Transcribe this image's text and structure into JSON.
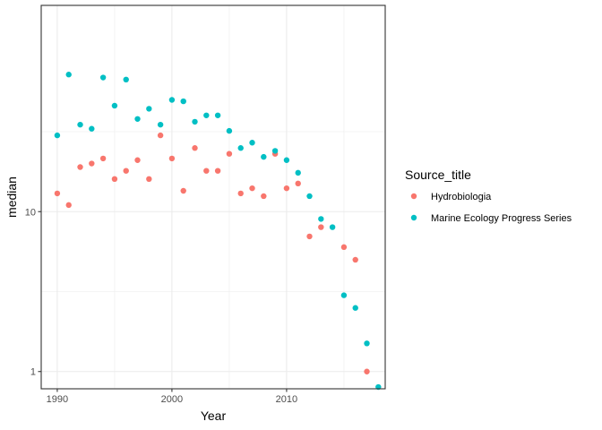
{
  "chart_data": {
    "type": "scatter",
    "xlabel": "Year",
    "ylabel": "median",
    "y_scale": "log10",
    "xlim": [
      1988.6,
      2018.6
    ],
    "ylim": [
      0.78,
      195
    ],
    "x_ticks": [
      1990,
      2000,
      2010
    ],
    "x_tick_labels": [
      "1990",
      "2000",
      "2010"
    ],
    "y_ticks": [
      1,
      10
    ],
    "y_tick_labels": [
      "1",
      "10"
    ],
    "grid": true,
    "legend": {
      "title": "Source_title",
      "position": "right"
    },
    "series": [
      {
        "name": "Hydrobiologia",
        "color": "#F8766D",
        "points": [
          [
            1990,
            13
          ],
          [
            1991,
            11
          ],
          [
            1992,
            19
          ],
          [
            1993,
            20
          ],
          [
            1994,
            21.5
          ],
          [
            1995,
            16
          ],
          [
            1996,
            18
          ],
          [
            1997,
            21
          ],
          [
            1998,
            16
          ],
          [
            1999,
            30
          ],
          [
            2000,
            21.5
          ],
          [
            2001,
            13.5
          ],
          [
            2002,
            25
          ],
          [
            2003,
            18
          ],
          [
            2004,
            18
          ],
          [
            2005,
            23
          ],
          [
            2006,
            13
          ],
          [
            2007,
            14
          ],
          [
            2008,
            12.5
          ],
          [
            2009,
            23
          ],
          [
            2010,
            14
          ],
          [
            2011,
            15
          ],
          [
            2012,
            7
          ],
          [
            2013,
            8
          ],
          [
            2015,
            6
          ],
          [
            2016,
            5
          ],
          [
            2017,
            1
          ]
        ]
      },
      {
        "name": "Marine Ecology Progress Series",
        "color": "#00BFC4",
        "points": [
          [
            1990,
            30
          ],
          [
            1991,
            72
          ],
          [
            1992,
            35
          ],
          [
            1993,
            33
          ],
          [
            1994,
            69
          ],
          [
            1995,
            46
          ],
          [
            1996,
            67
          ],
          [
            1997,
            38
          ],
          [
            1998,
            44
          ],
          [
            1999,
            35
          ],
          [
            2000,
            50
          ],
          [
            2001,
            49
          ],
          [
            2002,
            36.5
          ],
          [
            2003,
            40
          ],
          [
            2004,
            40
          ],
          [
            2005,
            32
          ],
          [
            2006,
            25
          ],
          [
            2007,
            27
          ],
          [
            2008,
            22
          ],
          [
            2009,
            24
          ],
          [
            2010,
            21
          ],
          [
            2011,
            17.5
          ],
          [
            2012,
            12.5
          ],
          [
            2013,
            9
          ],
          [
            2014,
            8
          ],
          [
            2015,
            3
          ],
          [
            2016,
            2.5
          ],
          [
            2017,
            1.5
          ],
          [
            2018,
            0.8
          ]
        ]
      }
    ]
  }
}
